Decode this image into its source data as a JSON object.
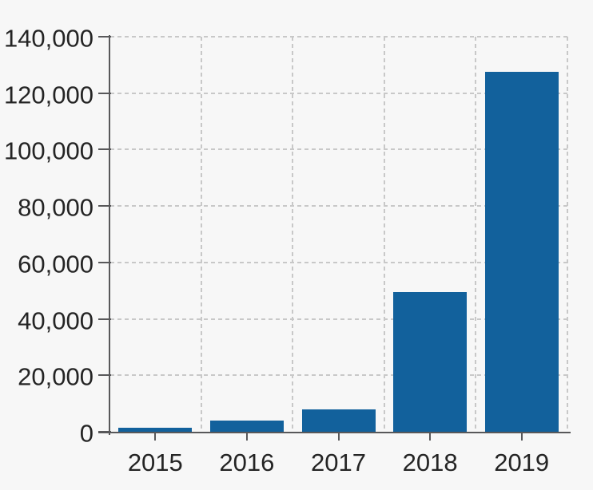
{
  "chart_data": {
    "type": "bar",
    "categories": [
      "2015",
      "2016",
      "2017",
      "2018",
      "2019"
    ],
    "values": [
      1300,
      4000,
      8000,
      49500,
      127500
    ],
    "xlabel": "",
    "ylabel": "",
    "ylim": [
      0,
      140000
    ],
    "ytick_step": 20000,
    "ytick_labels": [
      "0",
      "20,000",
      "40,000",
      "60,000",
      "80,000",
      "100,000",
      "120,000",
      "140,000"
    ],
    "grid": "dashed horizontal and vertical, inside plot area only",
    "legend_position": "none",
    "colors": {
      "bar": "#12619c",
      "background": "#f7f7f7",
      "grid": "#c8c8c8",
      "axis": "#58585a",
      "text": "#242424"
    }
  }
}
